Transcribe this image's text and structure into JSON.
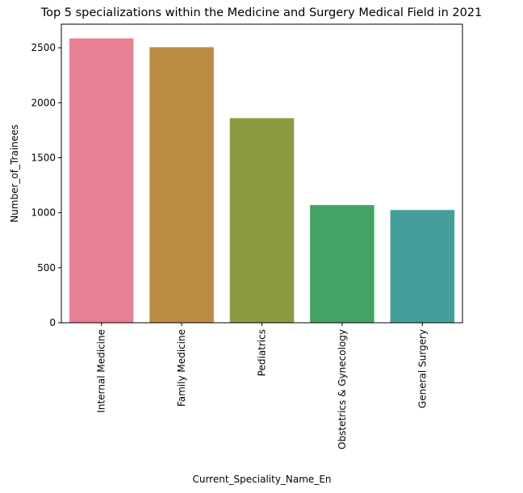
{
  "chart_data": {
    "type": "bar",
    "title": "Top 5 specializations within the Medicine and Surgery Medical Field in 2021",
    "xlabel": "Current_Speciality_Name_En",
    "ylabel": "Number_of_Trainees",
    "categories": [
      "Internal Medicine",
      "Family Medicine",
      "Pediatrics",
      "Obstetrics & Gynecology",
      "General Surgery"
    ],
    "values": [
      2585,
      2505,
      1860,
      1070,
      1025
    ],
    "colors": [
      "#e88093",
      "#bb8c44",
      "#8e9a42",
      "#43a364",
      "#449f9c"
    ],
    "ylim": [
      0,
      2714
    ],
    "yticks": [
      0,
      500,
      1000,
      1500,
      2000,
      2500
    ],
    "grid": false,
    "legend": "none"
  }
}
